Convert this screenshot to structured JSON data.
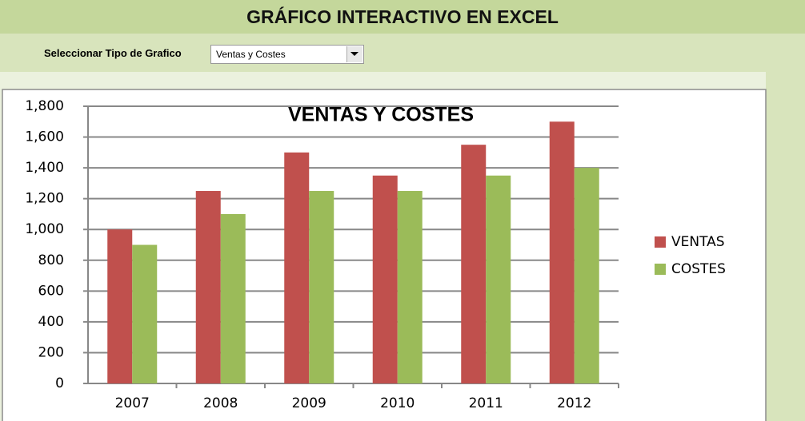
{
  "header": {
    "title": "GRÁFICO INTERACTIVO EN EXCEL"
  },
  "selector": {
    "label": "Seleccionar Tipo de Grafico",
    "value": "Ventas y Costes"
  },
  "chart_data": {
    "type": "bar",
    "title": "VENTAS Y COSTES",
    "categories": [
      "2007",
      "2008",
      "2009",
      "2010",
      "2011",
      "2012"
    ],
    "series": [
      {
        "name": "VENTAS",
        "color": "#c0504d",
        "values": [
          1000,
          1250,
          1500,
          1350,
          1550,
          1700
        ]
      },
      {
        "name": "COSTES",
        "color": "#9bbb59",
        "values": [
          900,
          1100,
          1250,
          1250,
          1350,
          1400
        ]
      }
    ],
    "ylim": [
      0,
      1800
    ],
    "yticks": [
      0,
      200,
      400,
      600,
      800,
      {
        "value": 1000,
        "label": "1,000"
      },
      {
        "value": 1200,
        "label": "1,200"
      },
      {
        "value": 1400,
        "label": "1,400"
      },
      {
        "value": 1600,
        "label": "1,600"
      },
      {
        "value": 1800,
        "label": "1,800"
      }
    ],
    "grid": true,
    "legend": "right"
  }
}
